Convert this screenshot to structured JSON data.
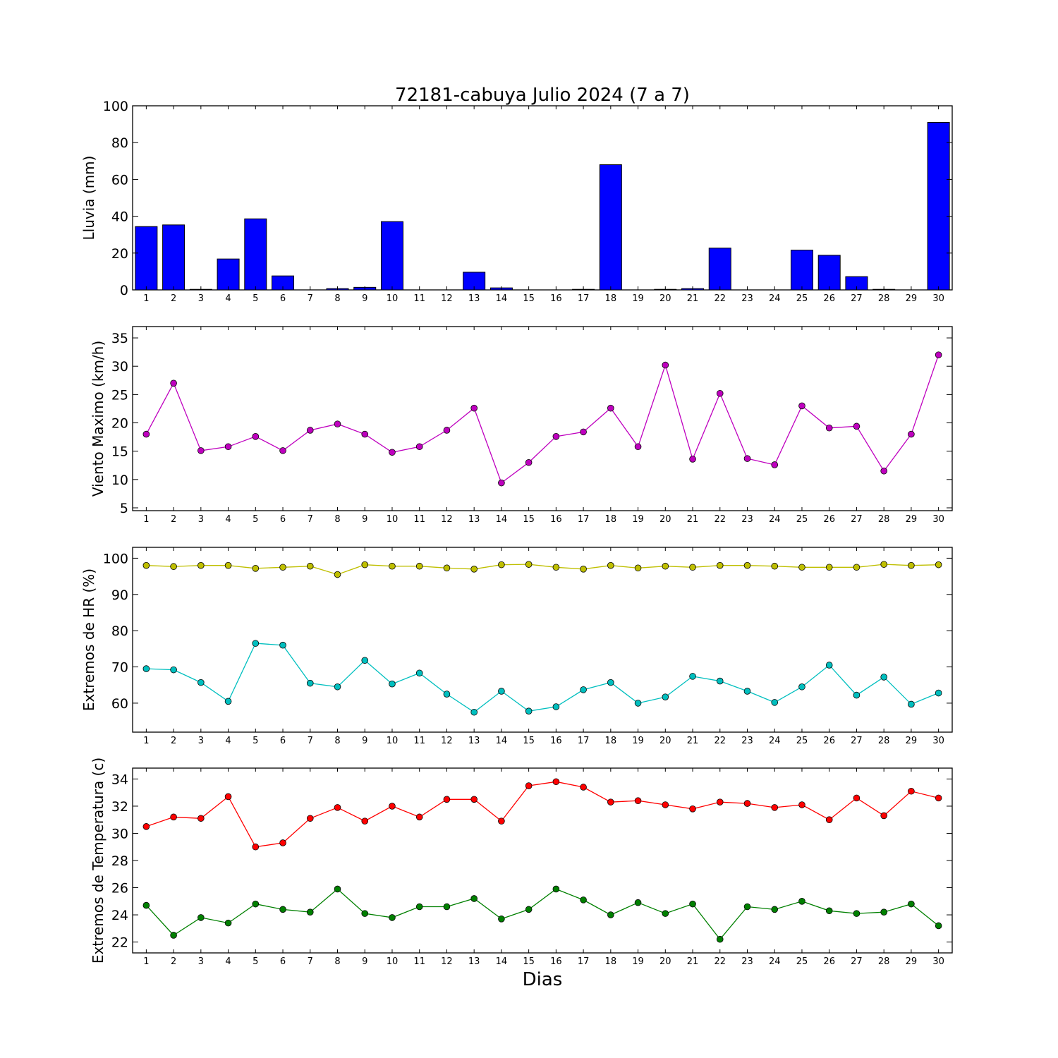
{
  "figure": {
    "title": "72181-cabuya Julio 2024  (7 a 7)",
    "xlabel": "Dias"
  },
  "chart_data": [
    {
      "type": "bar",
      "ylabel": "Lluvia (mm)",
      "ylim": [
        0,
        100
      ],
      "yticks": [
        0,
        20,
        40,
        60,
        80,
        100
      ],
      "xlim": [
        0.5,
        30.5
      ],
      "categories": [
        1,
        2,
        3,
        4,
        5,
        6,
        7,
        8,
        9,
        10,
        11,
        12,
        13,
        14,
        15,
        16,
        17,
        18,
        19,
        20,
        21,
        22,
        23,
        24,
        25,
        26,
        27,
        28,
        29,
        30
      ],
      "series": [
        {
          "color": "#0000ff",
          "values": [
            34.4,
            35.3,
            0.3,
            16.8,
            38.6,
            7.6,
            0,
            0.7,
            1.4,
            37.1,
            0,
            0,
            9.6,
            1.1,
            0,
            0,
            0.3,
            68.0,
            0,
            0.3,
            0.7,
            22.7,
            0,
            0,
            21.6,
            18.8,
            7.2,
            0.3,
            0,
            91.0
          ]
        }
      ]
    },
    {
      "type": "line",
      "ylabel": "Viento Maximo (km/h)",
      "ylim": [
        4.5,
        37
      ],
      "yticks": [
        5,
        10,
        15,
        20,
        25,
        30,
        35
      ],
      "xlim": [
        0.5,
        30.5
      ],
      "x": [
        1,
        2,
        3,
        4,
        5,
        6,
        7,
        8,
        9,
        10,
        11,
        12,
        13,
        14,
        15,
        16,
        17,
        18,
        19,
        20,
        21,
        22,
        23,
        24,
        25,
        26,
        27,
        28,
        29,
        30
      ],
      "series": [
        {
          "color": "#bf00bf",
          "values": [
            18.0,
            27.0,
            15.1,
            15.8,
            17.6,
            15.1,
            18.7,
            19.8,
            18.0,
            14.8,
            15.8,
            18.7,
            22.6,
            9.4,
            13.0,
            17.6,
            18.4,
            22.6,
            15.8,
            30.2,
            13.6,
            25.2,
            13.7,
            12.6,
            23.0,
            19.1,
            19.4,
            11.5,
            18.0,
            32.0
          ]
        }
      ]
    },
    {
      "type": "line",
      "ylabel": "Extremos de HR (%)",
      "ylim": [
        52,
        103
      ],
      "yticks": [
        60,
        70,
        80,
        90,
        100
      ],
      "xlim": [
        0.5,
        30.5
      ],
      "x": [
        1,
        2,
        3,
        4,
        5,
        6,
        7,
        8,
        9,
        10,
        11,
        12,
        13,
        14,
        15,
        16,
        17,
        18,
        19,
        20,
        21,
        22,
        23,
        24,
        25,
        26,
        27,
        28,
        29,
        30
      ],
      "series": [
        {
          "color": "#bfbf00",
          "values": [
            98.0,
            97.7,
            98.0,
            98.0,
            97.2,
            97.5,
            97.8,
            95.5,
            98.2,
            97.8,
            97.8,
            97.3,
            97.0,
            98.2,
            98.3,
            97.5,
            97.0,
            98.0,
            97.3,
            97.8,
            97.5,
            98.0,
            98.0,
            97.8,
            97.5,
            97.5,
            97.5,
            98.3,
            98.0,
            98.2
          ]
        },
        {
          "color": "#00bfbf",
          "values": [
            69.5,
            69.2,
            65.7,
            60.5,
            76.5,
            76.0,
            65.5,
            64.5,
            71.8,
            65.3,
            68.3,
            62.5,
            57.5,
            63.3,
            57.8,
            59.0,
            63.7,
            65.7,
            60.0,
            61.7,
            67.4,
            66.1,
            63.3,
            60.2,
            64.5,
            70.5,
            62.2,
            67.2,
            59.7,
            62.8
          ]
        }
      ]
    },
    {
      "type": "line",
      "ylabel": "Extremos de Temperatura (c)",
      "ylim": [
        21.2,
        34.8
      ],
      "yticks": [
        22,
        24,
        26,
        28,
        30,
        32,
        34
      ],
      "xlim": [
        0.5,
        30.5
      ],
      "x": [
        1,
        2,
        3,
        4,
        5,
        6,
        7,
        8,
        9,
        10,
        11,
        12,
        13,
        14,
        15,
        16,
        17,
        18,
        19,
        20,
        21,
        22,
        23,
        24,
        25,
        26,
        27,
        28,
        29,
        30
      ],
      "series": [
        {
          "color": "#ff0000",
          "values": [
            30.5,
            31.2,
            31.1,
            32.7,
            29.0,
            29.3,
            31.1,
            31.9,
            30.9,
            32.0,
            31.2,
            32.5,
            32.5,
            30.9,
            33.5,
            33.8,
            33.4,
            32.3,
            32.4,
            32.1,
            31.8,
            32.3,
            32.2,
            31.9,
            32.1,
            31.0,
            32.6,
            31.3,
            33.1,
            32.6
          ]
        },
        {
          "color": "#008000",
          "values": [
            24.7,
            22.5,
            23.8,
            23.4,
            24.8,
            24.4,
            24.2,
            25.9,
            24.1,
            23.8,
            24.6,
            24.6,
            25.2,
            23.7,
            24.4,
            25.9,
            25.1,
            24.0,
            24.9,
            24.1,
            24.8,
            22.2,
            24.6,
            24.4,
            25.0,
            24.3,
            24.1,
            24.2,
            24.8,
            23.2
          ]
        }
      ]
    }
  ]
}
